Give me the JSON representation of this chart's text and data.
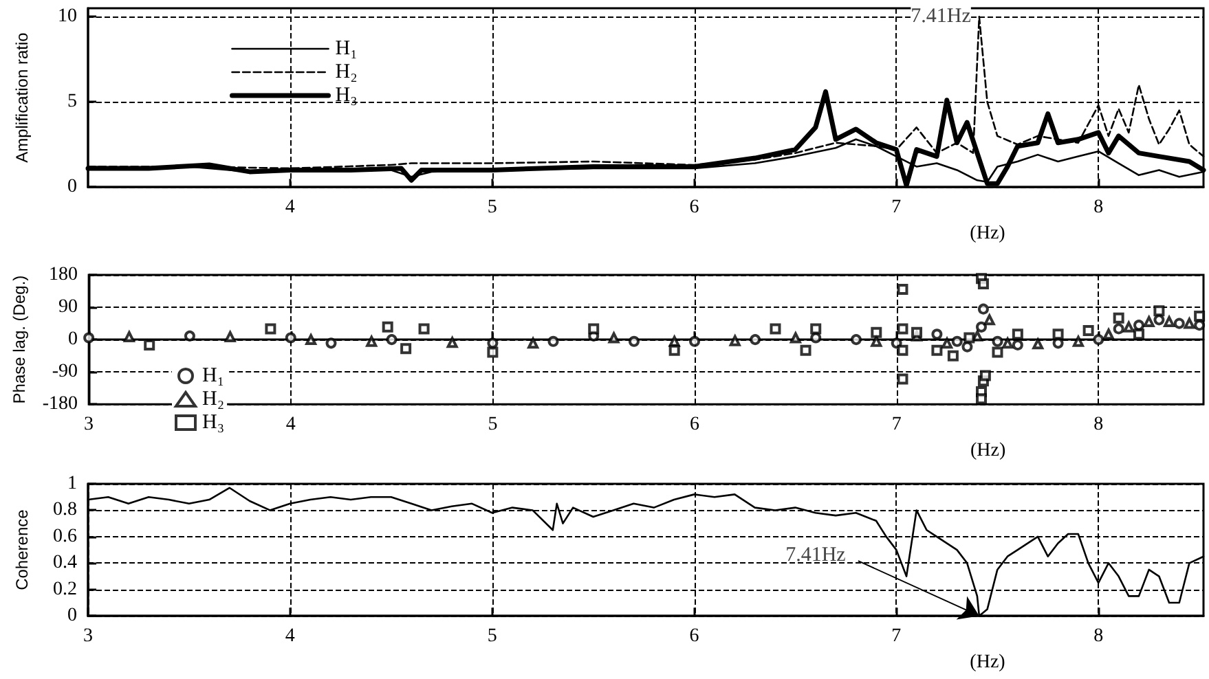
{
  "chart_data": [
    {
      "type": "line",
      "ylabel": "Amplification ratio",
      "xlabel": "(Hz)",
      "xlim": [
        3,
        8.52
      ],
      "xticks": [
        4,
        5,
        6,
        7,
        8
      ],
      "ylim": [
        0,
        10.5
      ],
      "yticks": [
        0,
        5,
        10
      ],
      "grid": true,
      "legend": "top left",
      "marker": "none",
      "annotations": [
        {
          "text": "7.41Hz",
          "x": 7.41,
          "y": 10
        }
      ],
      "series": [
        {
          "name": "H₁",
          "color": "#000000",
          "line_style": "solid",
          "x": [
            3,
            3.3,
            3.5,
            3.8,
            4,
            4.3,
            4.5,
            4.6,
            4.7,
            5,
            5.5,
            6,
            6.3,
            6.5,
            6.7,
            6.8,
            6.9,
            7,
            7.1,
            7.2,
            7.3,
            7.4,
            7.45,
            7.5,
            7.6,
            7.7,
            7.8,
            7.9,
            8,
            8.1,
            8.2,
            8.3,
            8.4,
            8.52
          ],
          "values": [
            1.2,
            1.1,
            1.2,
            0.9,
            1.1,
            1.0,
            1.0,
            0.6,
            0.9,
            1.0,
            1.1,
            1.1,
            1.4,
            1.8,
            2.3,
            2.8,
            2.4,
            1.8,
            1.2,
            1.4,
            1.0,
            0.4,
            0.3,
            1.2,
            1.5,
            1.9,
            1.5,
            1.8,
            2.1,
            1.4,
            0.7,
            1.0,
            0.6,
            0.9
          ]
        },
        {
          "name": "H₂",
          "color": "#000000",
          "line_style": "dashed",
          "x": [
            3,
            3.5,
            4,
            4.5,
            4.6,
            5,
            5.5,
            6,
            6.3,
            6.5,
            6.7,
            6.9,
            7,
            7.1,
            7.2,
            7.3,
            7.38,
            7.41,
            7.45,
            7.5,
            7.6,
            7.7,
            7.8,
            7.9,
            8,
            8.05,
            8.1,
            8.15,
            8.2,
            8.25,
            8.3,
            8.35,
            8.4,
            8.45,
            8.52
          ],
          "values": [
            1.2,
            1.2,
            1.1,
            1.3,
            1.4,
            1.4,
            1.5,
            1.3,
            1.6,
            2.0,
            2.6,
            2.4,
            2.2,
            3.5,
            2.0,
            2.6,
            2.0,
            10,
            5.0,
            3.0,
            2.5,
            3.0,
            2.8,
            2.6,
            4.8,
            3.0,
            4.6,
            3.2,
            6.0,
            4.0,
            2.5,
            3.4,
            4.5,
            2.5,
            1.8
          ]
        },
        {
          "name": "H₃",
          "color": "#000000",
          "line_style": "solid",
          "x": [
            3,
            3.3,
            3.6,
            3.8,
            4,
            4.3,
            4.55,
            4.6,
            4.65,
            5,
            5.5,
            6,
            6.3,
            6.5,
            6.6,
            6.65,
            6.7,
            6.8,
            6.9,
            7,
            7.05,
            7.1,
            7.2,
            7.25,
            7.3,
            7.35,
            7.4,
            7.45,
            7.5,
            7.55,
            7.6,
            7.7,
            7.75,
            7.8,
            7.9,
            8,
            8.05,
            8.1,
            8.2,
            8.3,
            8.45,
            8.52
          ],
          "values": [
            1.1,
            1.1,
            1.3,
            0.9,
            1.0,
            1.0,
            1.1,
            0.4,
            1.0,
            1.0,
            1.2,
            1.2,
            1.7,
            2.2,
            3.5,
            5.6,
            2.8,
            3.4,
            2.6,
            2.2,
            0.1,
            2.2,
            1.8,
            5.1,
            2.6,
            3.8,
            2.0,
            0.2,
            0.2,
            1.2,
            2.4,
            2.6,
            4.3,
            2.6,
            2.8,
            3.2,
            2.0,
            3.0,
            2.0,
            1.8,
            1.5,
            1.0
          ]
        }
      ]
    },
    {
      "type": "scatter",
      "ylabel": "Phase lag. (Deg.)",
      "xlabel": "(Hz)",
      "xlim": [
        3,
        8.52
      ],
      "xticks": [
        3,
        4,
        5,
        6,
        7,
        8
      ],
      "ylim": [
        -180,
        180
      ],
      "yticks": [
        -180,
        -90,
        0,
        90,
        180
      ],
      "grid": true,
      "legend": "bottom left",
      "series": [
        {
          "name": "H₁",
          "color": "#000000",
          "marker": "circle",
          "x": [
            3,
            3.5,
            4,
            4.2,
            4.5,
            5,
            5.3,
            5.5,
            5.7,
            6,
            6.3,
            6.6,
            6.8,
            7,
            7.2,
            7.3,
            7.35,
            7.42,
            7.43,
            7.5,
            7.6,
            7.8,
            8,
            8.1,
            8.2,
            8.3,
            8.4,
            8.5
          ],
          "values": [
            5,
            10,
            5,
            -10,
            0,
            -10,
            -5,
            10,
            -5,
            -5,
            0,
            5,
            0,
            -10,
            15,
            -5,
            -20,
            35,
            85,
            -5,
            -15,
            -10,
            0,
            30,
            40,
            55,
            45,
            40
          ]
        },
        {
          "name": "H₂",
          "color": "#000000",
          "marker": "triangle",
          "x": [
            3.2,
            3.7,
            4.1,
            4.4,
            4.8,
            5.2,
            5.6,
            5.9,
            6.2,
            6.5,
            6.9,
            7.1,
            7.25,
            7.4,
            7.46,
            7.55,
            7.7,
            7.9,
            8.05,
            8.15,
            8.25,
            8.35,
            8.45
          ],
          "values": [
            8,
            8,
            0,
            -5,
            -8,
            -10,
            5,
            -5,
            -3,
            5,
            -5,
            10,
            -10,
            10,
            55,
            -10,
            -12,
            -5,
            15,
            35,
            50,
            50,
            45
          ]
        },
        {
          "name": "H₃",
          "color": "#000000",
          "marker": "square",
          "x": [
            3.3,
            3.9,
            4.48,
            4.57,
            4.66,
            5,
            5.5,
            5.9,
            6.4,
            6.55,
            6.6,
            6.9,
            7.03,
            7.03,
            7.03,
            7.03,
            7.1,
            7.2,
            7.28,
            7.36,
            7.42,
            7.43,
            7.42,
            7.43,
            7.44,
            7.42,
            7.5,
            7.6,
            7.8,
            7.95,
            8.1,
            8.2,
            8.3,
            8.5
          ],
          "values": [
            -15,
            30,
            35,
            -25,
            30,
            -35,
            30,
            -30,
            30,
            -30,
            30,
            20,
            140,
            30,
            -30,
            -110,
            20,
            -30,
            -45,
            5,
            170,
            155,
            -145,
            -115,
            -100,
            -165,
            -35,
            15,
            15,
            25,
            60,
            15,
            80,
            65
          ]
        }
      ]
    },
    {
      "type": "line",
      "ylabel": "Coherence",
      "xlabel": "(Hz)",
      "xlim": [
        3,
        8.52
      ],
      "xticks": [
        3,
        4,
        5,
        6,
        7,
        8
      ],
      "ylim": [
        0,
        1
      ],
      "yticks": [
        0,
        0.2,
        0.4,
        0.6,
        0.8,
        1
      ],
      "grid": true,
      "marker": "none",
      "annotations": [
        {
          "text": "7.41Hz",
          "x": 7.41,
          "y": 0
        }
      ],
      "series": [
        {
          "color": "#000000",
          "line_style": "solid",
          "x": [
            3,
            3.1,
            3.2,
            3.3,
            3.4,
            3.5,
            3.6,
            3.7,
            3.8,
            3.9,
            4,
            4.1,
            4.2,
            4.3,
            4.4,
            4.5,
            4.6,
            4.7,
            4.8,
            4.9,
            5,
            5.1,
            5.2,
            5.3,
            5.32,
            5.35,
            5.4,
            5.5,
            5.6,
            5.7,
            5.8,
            5.9,
            6,
            6.1,
            6.2,
            6.3,
            6.4,
            6.5,
            6.6,
            6.7,
            6.8,
            6.9,
            6.95,
            7,
            7.05,
            7.1,
            7.15,
            7.2,
            7.3,
            7.35,
            7.4,
            7.41,
            7.45,
            7.5,
            7.55,
            7.6,
            7.7,
            7.75,
            7.8,
            7.85,
            7.9,
            7.95,
            8,
            8.05,
            8.1,
            8.15,
            8.2,
            8.25,
            8.3,
            8.35,
            8.4,
            8.45,
            8.52
          ],
          "values": [
            0.88,
            0.9,
            0.85,
            0.9,
            0.88,
            0.85,
            0.88,
            0.97,
            0.87,
            0.8,
            0.85,
            0.88,
            0.9,
            0.88,
            0.9,
            0.9,
            0.85,
            0.8,
            0.83,
            0.85,
            0.78,
            0.82,
            0.8,
            0.65,
            0.85,
            0.7,
            0.82,
            0.75,
            0.8,
            0.85,
            0.82,
            0.88,
            0.92,
            0.9,
            0.92,
            0.82,
            0.8,
            0.82,
            0.78,
            0.76,
            0.78,
            0.72,
            0.6,
            0.5,
            0.3,
            0.8,
            0.65,
            0.6,
            0.5,
            0.4,
            0.15,
            0,
            0.05,
            0.35,
            0.45,
            0.5,
            0.6,
            0.45,
            0.55,
            0.62,
            0.62,
            0.4,
            0.25,
            0.4,
            0.3,
            0.15,
            0.15,
            0.35,
            0.3,
            0.1,
            0.1,
            0.4,
            0.45
          ]
        }
      ]
    }
  ]
}
